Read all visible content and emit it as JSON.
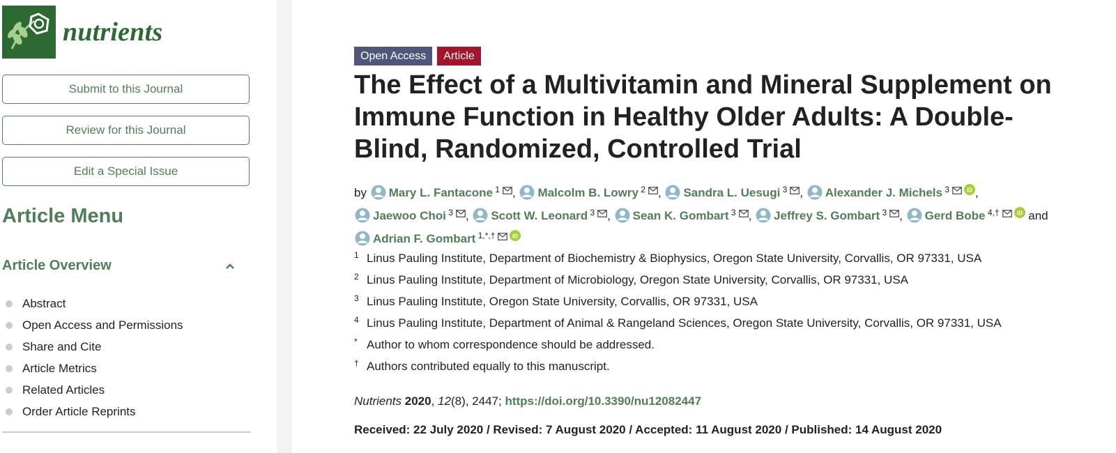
{
  "sidebar": {
    "logo_text": "nutrients",
    "buttons": [
      "Submit to this Journal",
      "Review for this Journal",
      "Edit a Special Issue"
    ],
    "menu_title": "Article Menu",
    "overview_label": "Article Overview",
    "menu_items": [
      "Abstract",
      "Open Access and Permissions",
      "Share and Cite",
      "Article Metrics",
      "Related Articles",
      "Order Article Reprints"
    ]
  },
  "article": {
    "badges": {
      "open_access": "Open Access",
      "type": "Article"
    },
    "title": "The Effect of a Multivitamin and Mineral Supplement on Immune Function in Healthy Older Adults: A Double-Blind, Randomized, Controlled Trial",
    "by_label": "by",
    "and_label": "and",
    "authors": [
      {
        "name": "Mary L. Fantacone",
        "sup": "1",
        "orcid": false
      },
      {
        "name": "Malcolm B. Lowry",
        "sup": "2",
        "orcid": false
      },
      {
        "name": "Sandra L. Uesugi",
        "sup": "3",
        "orcid": false
      },
      {
        "name": "Alexander J. Michels",
        "sup": "3",
        "orcid": true
      },
      {
        "name": "Jaewoo Choi",
        "sup": "3",
        "orcid": false
      },
      {
        "name": "Scott W. Leonard",
        "sup": "3",
        "orcid": false
      },
      {
        "name": "Sean K. Gombart",
        "sup": "3",
        "orcid": false
      },
      {
        "name": "Jeffrey S. Gombart",
        "sup": "3",
        "orcid": false
      },
      {
        "name": "Gerd Bobe",
        "sup": "4,†",
        "orcid": true
      },
      {
        "name": "Adrian F. Gombart",
        "sup": "1,*,†",
        "orcid": true
      }
    ],
    "affiliations": [
      {
        "mark": "1",
        "text": "Linus Pauling Institute, Department of Biochemistry & Biophysics, Oregon State University, Corvallis, OR 97331, USA"
      },
      {
        "mark": "2",
        "text": "Linus Pauling Institute, Department of Microbiology, Oregon State University, Corvallis, OR 97331, USA"
      },
      {
        "mark": "3",
        "text": "Linus Pauling Institute, Oregon State University, Corvallis, OR 97331, USA"
      },
      {
        "mark": "4",
        "text": "Linus Pauling Institute, Department of Animal & Rangeland Sciences, Oregon State University, Corvallis, OR 97331, USA"
      },
      {
        "mark": "*",
        "text": "Author to whom correspondence should be addressed."
      },
      {
        "mark": "†",
        "text": "Authors contributed equally to this manuscript."
      }
    ],
    "citation": {
      "journal": "Nutrients",
      "year": "2020",
      "volume": "12",
      "issue": "(8), 2447; ",
      "doi": "https://doi.org/10.3390/nu12082447"
    },
    "dates": "Received: 22 July 2020 / Revised: 7 August 2020 / Accepted: 11 August 2020 / Published: 14 August 2020"
  },
  "colors": {
    "brand_green": "#4f7f57",
    "logo_green": "#2d6a33",
    "badge_open_access": "#4e5779",
    "badge_article": "#a3152b",
    "orcid": "#a6ce39"
  }
}
